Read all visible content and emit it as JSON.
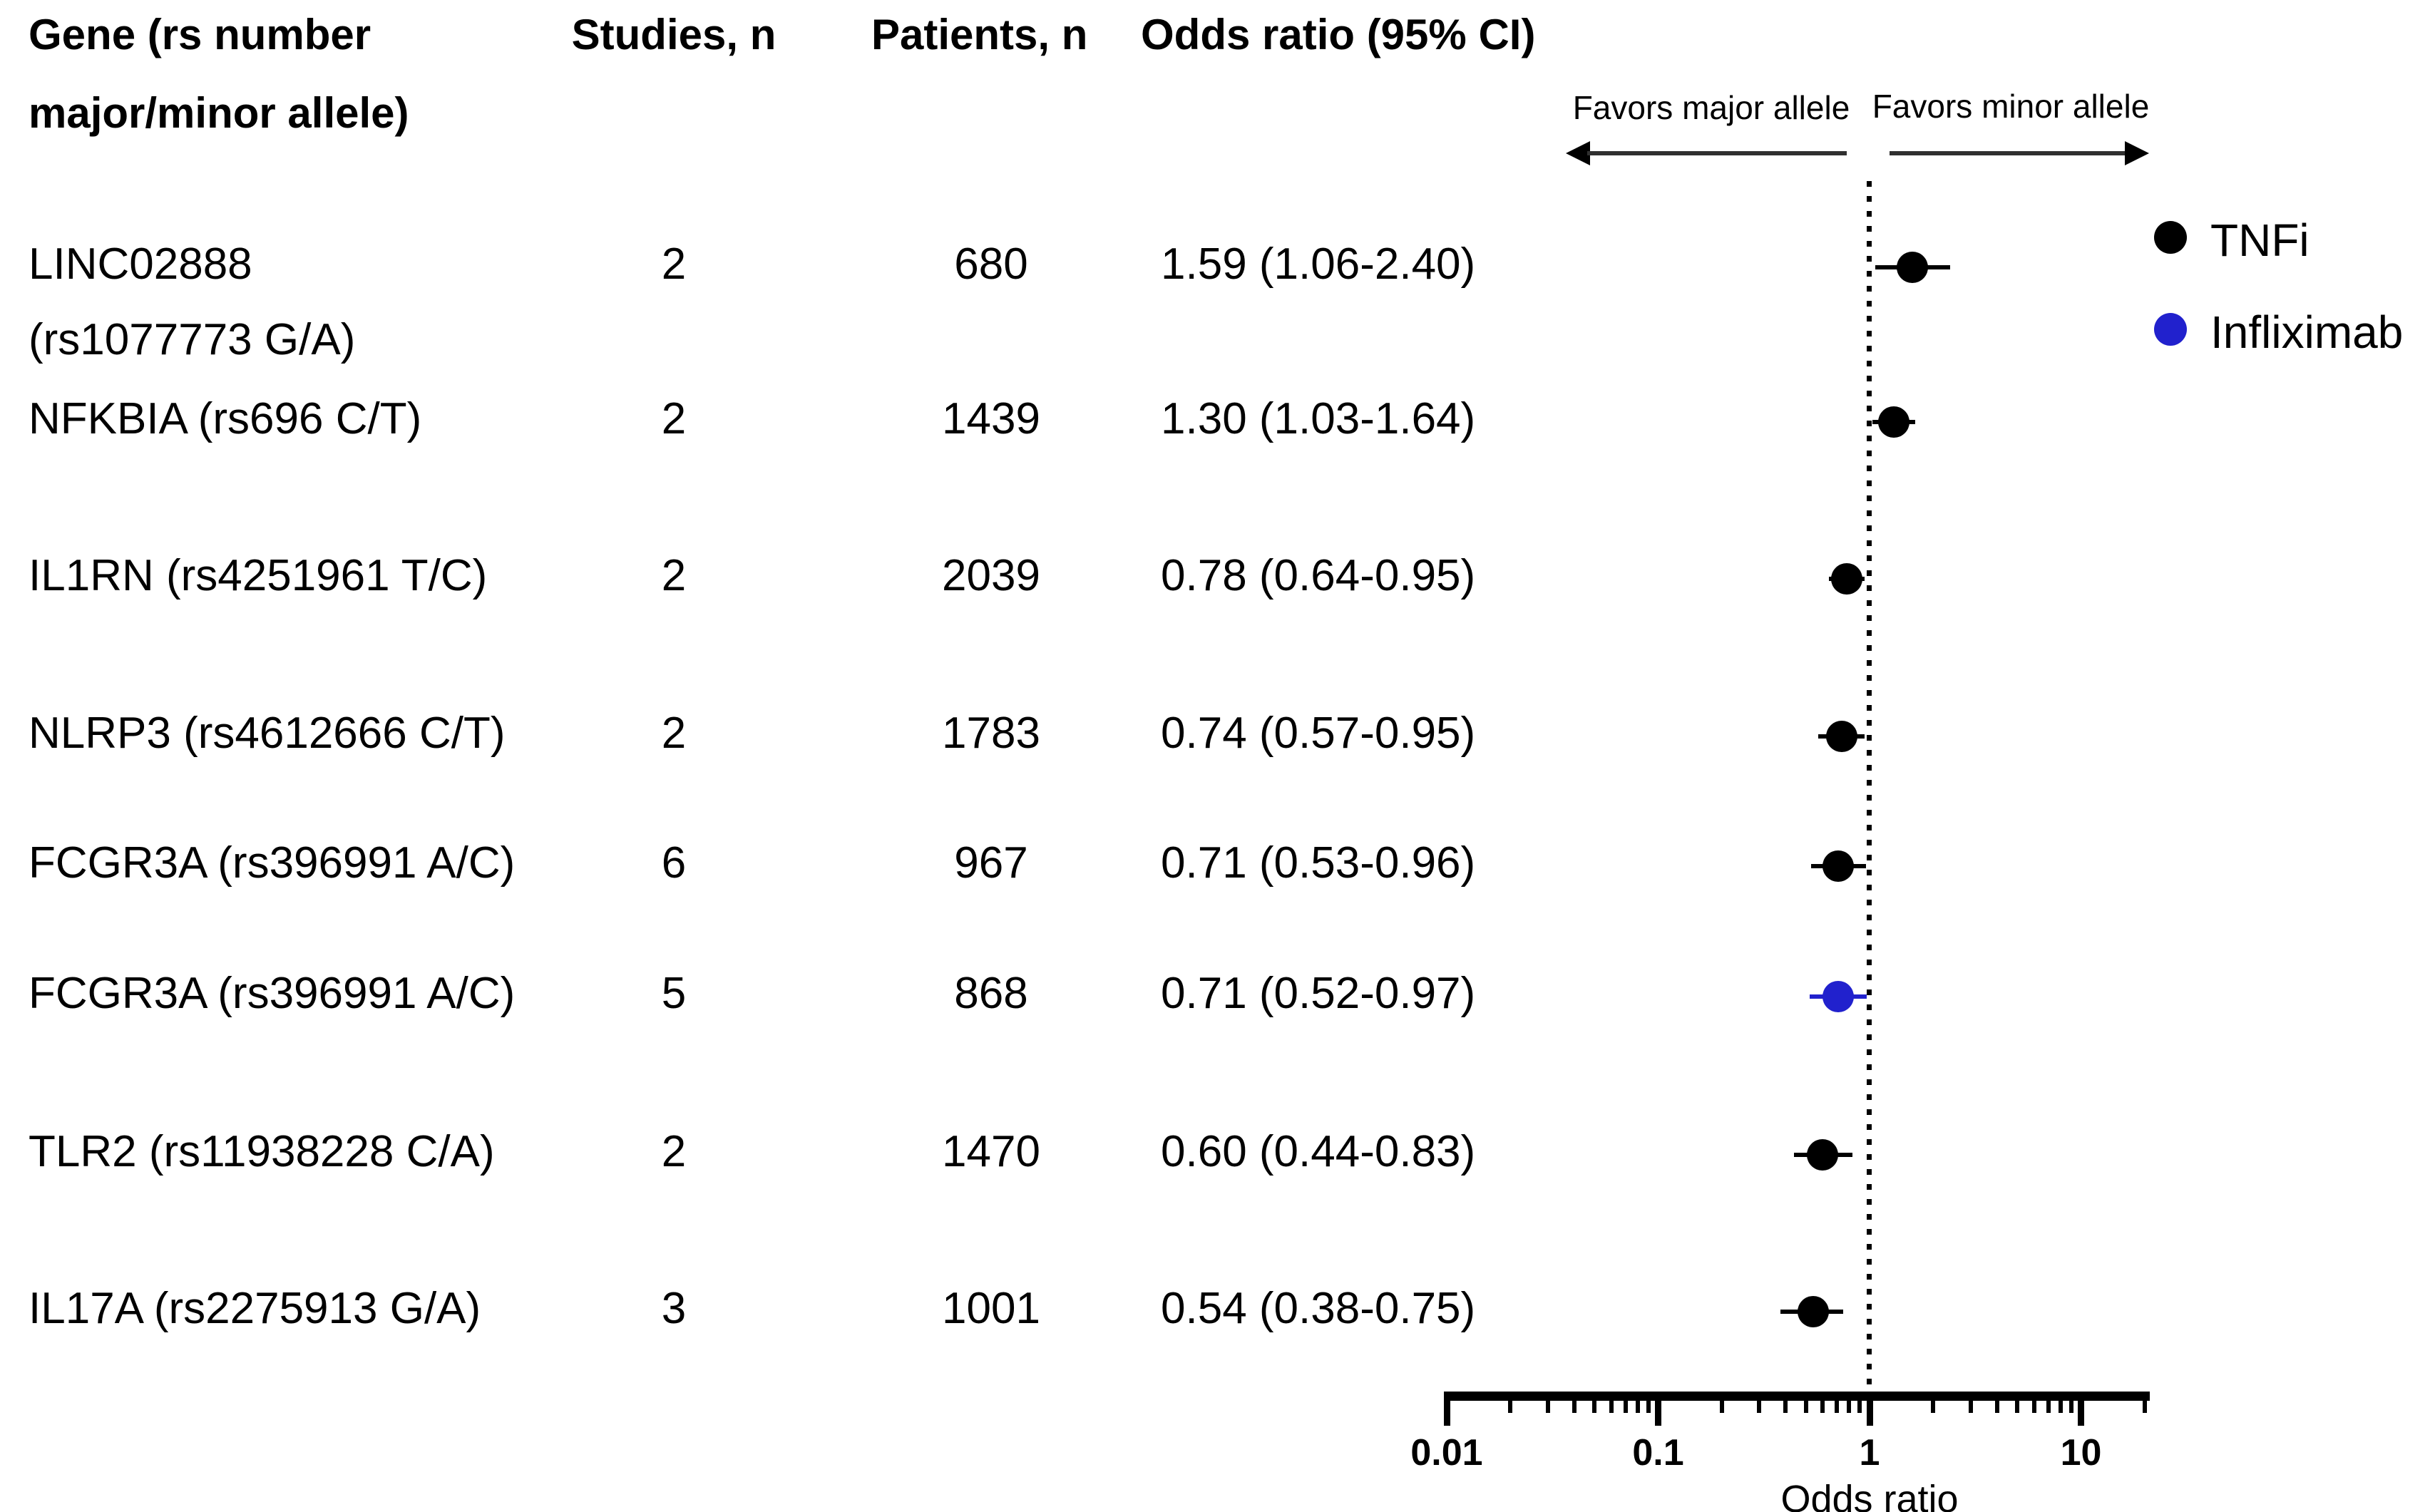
{
  "table": {
    "headers": {
      "gene_line1": "Gene (rs number",
      "gene_line2": "major/minor allele)",
      "studies": "Studies, n",
      "patients": "Patients, n",
      "odds_ratio": "Odds ratio (95% CI)"
    },
    "rows": [
      {
        "gene": "LINC02888",
        "gene_line2": "(rs1077773 G/A)",
        "studies": "2",
        "patients": "680",
        "or_ci": "1.59 (1.06-2.40)"
      },
      {
        "gene": "NFKBIA (rs696 C/T)",
        "studies": "2",
        "patients": "1439",
        "or_ci": "1.30 (1.03-1.64)"
      },
      {
        "gene": "IL1RN (rs4251961 T/C)",
        "studies": "2",
        "patients": "2039",
        "or_ci": "0.78 (0.64-0.95)"
      },
      {
        "gene": "NLRP3 (rs4612666 C/T)",
        "studies": "2",
        "patients": "1783",
        "or_ci": "0.74 (0.57-0.95)"
      },
      {
        "gene": "FCGR3A (rs396991 A/C)",
        "studies": "6",
        "patients": "967",
        "or_ci": "0.71 (0.53-0.96)"
      },
      {
        "gene": "FCGR3A (rs396991 A/C)",
        "studies": "5",
        "patients": "868",
        "or_ci": "0.71 (0.52-0.97)"
      },
      {
        "gene": "TLR2 (rs11938228 C/A)",
        "studies": "2",
        "patients": "1470",
        "or_ci": "0.60 (0.44-0.83)"
      },
      {
        "gene": "IL17A (rs2275913 G/A)",
        "studies": "3",
        "patients": "1001",
        "or_ci": "0.54 (0.38-0.75)"
      }
    ]
  },
  "plot": {
    "favors_left": "Favors major allele",
    "favors_right": "Favors minor allele",
    "axis": {
      "tick_labels": [
        "0.01",
        "0.1",
        "1",
        "10"
      ],
      "xlabel": "Odds ratio"
    }
  },
  "legend": {
    "items": [
      {
        "label": "TNFi",
        "color": "#000000"
      },
      {
        "label": "Infliximab",
        "color": "#2121cd"
      }
    ]
  },
  "chart_data": {
    "type": "scatter",
    "variant": "forest-plot",
    "title": "",
    "xlabel": "Odds ratio",
    "x_scale": "log10",
    "x_range": [
      0.01,
      20
    ],
    "x_ticks": [
      0.01,
      0.1,
      1,
      10
    ],
    "reference_line_x": 1,
    "grid": false,
    "legend_position": "top-right",
    "annotations": [
      "Favors major allele",
      "Favors minor allele"
    ],
    "legend": [
      {
        "name": "TNFi",
        "color": "#000000"
      },
      {
        "name": "Infliximab",
        "color": "#2121cd"
      }
    ],
    "points": [
      {
        "gene": "LINC02888 (rs1077773 G/A)",
        "studies": 2,
        "patients": 680,
        "or": 1.59,
        "ci_low": 1.06,
        "ci_high": 2.4,
        "group": "TNFi"
      },
      {
        "gene": "NFKBIA (rs696 C/T)",
        "studies": 2,
        "patients": 1439,
        "or": 1.3,
        "ci_low": 1.03,
        "ci_high": 1.64,
        "group": "TNFi"
      },
      {
        "gene": "IL1RN (rs4251961 T/C)",
        "studies": 2,
        "patients": 2039,
        "or": 0.78,
        "ci_low": 0.64,
        "ci_high": 0.95,
        "group": "TNFi"
      },
      {
        "gene": "NLRP3 (rs4612666 C/T)",
        "studies": 2,
        "patients": 1783,
        "or": 0.74,
        "ci_low": 0.57,
        "ci_high": 0.95,
        "group": "TNFi"
      },
      {
        "gene": "FCGR3A (rs396991 A/C)",
        "studies": 6,
        "patients": 967,
        "or": 0.71,
        "ci_low": 0.53,
        "ci_high": 0.96,
        "group": "TNFi"
      },
      {
        "gene": "FCGR3A (rs396991 A/C)",
        "studies": 5,
        "patients": 868,
        "or": 0.71,
        "ci_low": 0.52,
        "ci_high": 0.97,
        "group": "Infliximab"
      },
      {
        "gene": "TLR2 (rs11938228 C/A)",
        "studies": 2,
        "patients": 1470,
        "or": 0.6,
        "ci_low": 0.44,
        "ci_high": 0.83,
        "group": "TNFi"
      },
      {
        "gene": "IL17A (rs2275913 G/A)",
        "studies": 3,
        "patients": 1001,
        "or": 0.54,
        "ci_low": 0.38,
        "ci_high": 0.75,
        "group": "TNFi"
      }
    ]
  }
}
